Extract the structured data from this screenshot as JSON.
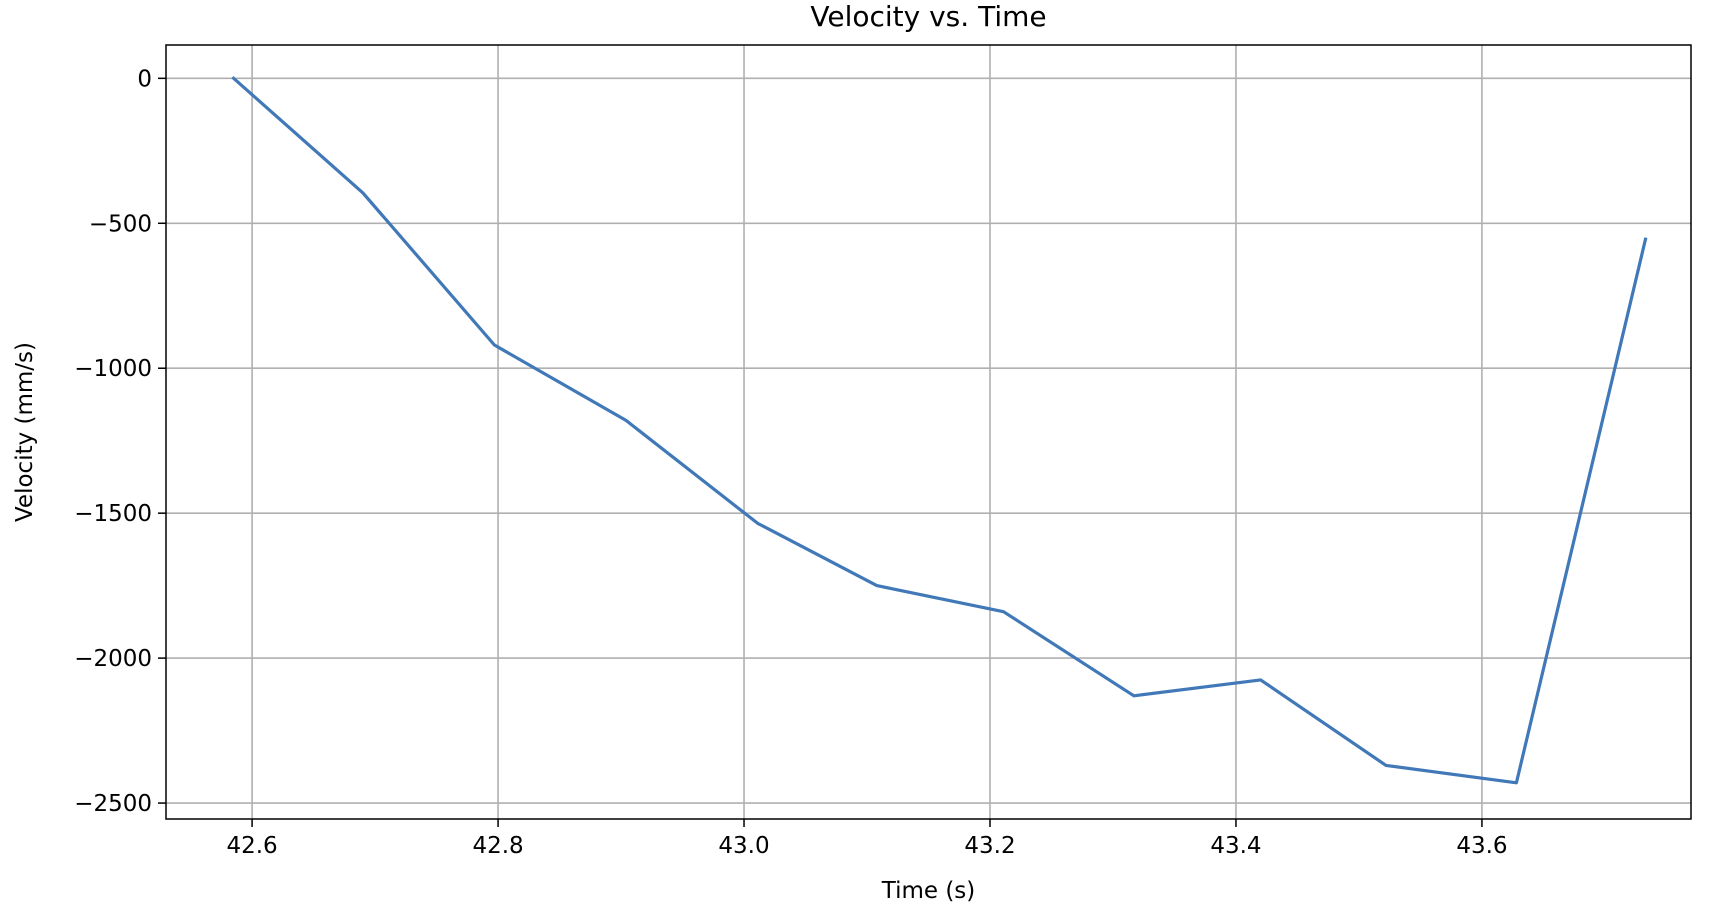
{
  "chart_data": {
    "type": "line",
    "title": "Velocity vs. Time",
    "xlabel": "Time (s)",
    "ylabel": "Velocity (mm/s)",
    "xlim": [
      42.53,
      43.77
    ],
    "ylim": [
      -2555,
      115
    ],
    "xticks": [
      42.6,
      42.8,
      43.0,
      43.2,
      43.4,
      43.6
    ],
    "xtick_labels": [
      "42.6",
      "42.8",
      "43.0",
      "43.2",
      "43.4",
      "43.6"
    ],
    "yticks": [
      0,
      -500,
      -1000,
      -1500,
      -2000,
      -2500
    ],
    "ytick_labels": [
      "0",
      "−500",
      "−1000",
      "−1500",
      "−2000",
      "−2500"
    ],
    "grid": true,
    "line_color": "#4078b8",
    "series": [
      {
        "x": [
          42.585,
          42.69,
          42.797,
          42.904,
          43.011,
          43.108,
          43.211,
          43.317,
          43.42,
          43.522,
          43.628,
          43.733
        ],
        "y": [
          0,
          -395,
          -920,
          -1180,
          -1535,
          -1750,
          -1840,
          -2130,
          -2075,
          -2370,
          -2430,
          -555
        ]
      }
    ]
  }
}
